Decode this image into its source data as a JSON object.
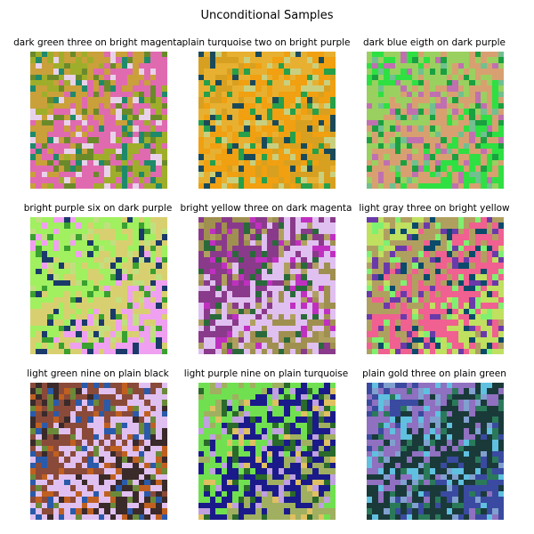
{
  "figure": {
    "title": "Unconditional Samples",
    "samples": [
      {
        "caption": "dark green three on bright magenta",
        "palette": [
          "#9fae2a",
          "#c9a03a",
          "#e06ab0",
          "#1f8a6a",
          "#e8d2ea",
          "#6a8a2a"
        ]
      },
      {
        "caption": "plain turquoise two on bright purple",
        "palette": [
          "#d8a020",
          "#e8b030",
          "#f0a010",
          "#1a4a5a",
          "#26a04a",
          "#c8d080"
        ]
      },
      {
        "caption": "dark blue eigth on dark purple",
        "palette": [
          "#2ee042",
          "#9ad060",
          "#d8a070",
          "#c070b0",
          "#1aa040",
          "#70c090"
        ]
      },
      {
        "caption": "bright purple six on dark purple",
        "palette": [
          "#f0a0f0",
          "#a0f060",
          "#d8d070",
          "#1a3a6a",
          "#3aa030",
          "#c0e080"
        ]
      },
      {
        "caption": "bright yellow three on dark magenta",
        "palette": [
          "#a09050",
          "#8a3a8a",
          "#e0c0f0",
          "#2a6a3a",
          "#c030c0",
          "#b0a060"
        ]
      },
      {
        "caption": "light gray three on bright yellow",
        "palette": [
          "#c0e060",
          "#b0a060",
          "#f06090",
          "#0a4a6a",
          "#80f070",
          "#6a3aaa"
        ]
      },
      {
        "caption": "light green nine on plain black",
        "palette": [
          "#3a2a2a",
          "#8a4a3a",
          "#e0c0f0",
          "#6a8a3a",
          "#2a5aaa",
          "#c06020"
        ]
      },
      {
        "caption": "light purple nine on plain turquoise",
        "palette": [
          "#a0b060",
          "#70e050",
          "#1a1a8a",
          "#e0c060",
          "#2a6a2a",
          "#c0a0e0"
        ]
      },
      {
        "caption": "plain gold three on plain green",
        "palette": [
          "#3a4aa0",
          "#9070c0",
          "#1a3a3a",
          "#80a0d0",
          "#2a7a5a",
          "#60c0e0"
        ]
      }
    ]
  }
}
